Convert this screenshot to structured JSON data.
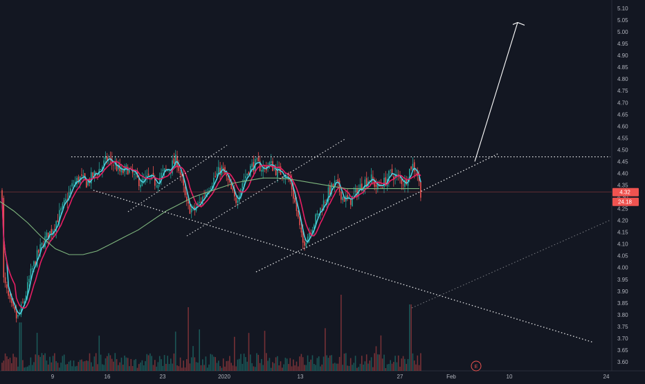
{
  "chart_data": {
    "type": "candlestick",
    "ylim": [
      3.55,
      5.13
    ],
    "y_ticks": [
      "5.10",
      "5.05",
      "5.00",
      "4.95",
      "4.90",
      "4.85",
      "4.80",
      "4.75",
      "4.70",
      "4.65",
      "4.60",
      "4.55",
      "4.50",
      "4.45",
      "4.40",
      "4.35",
      "4.30",
      "4.25",
      "4.20",
      "4.15",
      "4.10",
      "4.05",
      "4.00",
      "3.95",
      "3.90",
      "3.85",
      "3.80",
      "3.75",
      "3.70",
      "3.65",
      "3.60"
    ],
    "x_ticks": [
      "9",
      "16",
      "23",
      "2020",
      "13",
      "27",
      "Feb",
      "10",
      "24"
    ],
    "last_price": "4.32",
    "last_price_volume": "24.18",
    "event_marker": "E",
    "colors": {
      "background": "#131722",
      "up": "#26a69a",
      "down": "#ef5350",
      "ma_fast": "#4dd0e1",
      "ma_slow": "#e91e63",
      "ma_long": "#7fb77e",
      "price_line": "#ef5350",
      "drawing": "#ffffff"
    },
    "series": {
      "close_path": [
        [
          5,
          3.95
        ],
        [
          15,
          3.84
        ],
        [
          25,
          3.78
        ],
        [
          35,
          3.86
        ],
        [
          45,
          3.98
        ],
        [
          55,
          4.06
        ],
        [
          65,
          4.12
        ],
        [
          75,
          4.16
        ],
        [
          85,
          4.22
        ],
        [
          95,
          4.28
        ],
        [
          105,
          4.35
        ],
        [
          115,
          4.38
        ],
        [
          125,
          4.36
        ],
        [
          135,
          4.39
        ],
        [
          145,
          4.42
        ],
        [
          155,
          4.46
        ],
        [
          165,
          4.44
        ],
        [
          175,
          4.4
        ],
        [
          185,
          4.42
        ],
        [
          195,
          4.38
        ],
        [
          205,
          4.36
        ],
        [
          215,
          4.38
        ],
        [
          225,
          4.36
        ],
        [
          235,
          4.4
        ],
        [
          245,
          4.42
        ],
        [
          255,
          4.46
        ],
        [
          262,
          4.38
        ],
        [
          270,
          4.26
        ],
        [
          280,
          4.24
        ],
        [
          290,
          4.28
        ],
        [
          300,
          4.34
        ],
        [
          310,
          4.38
        ],
        [
          320,
          4.42
        ],
        [
          330,
          4.36
        ],
        [
          340,
          4.28
        ],
        [
          350,
          4.36
        ],
        [
          360,
          4.42
        ],
        [
          370,
          4.44
        ],
        [
          380,
          4.42
        ],
        [
          390,
          4.44
        ],
        [
          400,
          4.41
        ],
        [
          410,
          4.4
        ],
        [
          420,
          4.36
        ],
        [
          430,
          4.22
        ],
        [
          437,
          4.1
        ],
        [
          445,
          4.14
        ],
        [
          455,
          4.2
        ],
        [
          465,
          4.26
        ],
        [
          475,
          4.32
        ],
        [
          485,
          4.36
        ],
        [
          495,
          4.3
        ],
        [
          505,
          4.28
        ],
        [
          515,
          4.32
        ],
        [
          525,
          4.36
        ],
        [
          535,
          4.38
        ],
        [
          545,
          4.34
        ],
        [
          555,
          4.36
        ],
        [
          565,
          4.4
        ],
        [
          575,
          4.38
        ],
        [
          585,
          4.36
        ],
        [
          595,
          4.44
        ],
        [
          603,
          4.4
        ],
        [
          608,
          4.32
        ]
      ]
    },
    "drawings": {
      "resistance_y": 4.47,
      "target_arrow": {
        "from": [
          686,
          4.45
        ],
        "to": [
          748,
          5.04
        ]
      }
    }
  }
}
